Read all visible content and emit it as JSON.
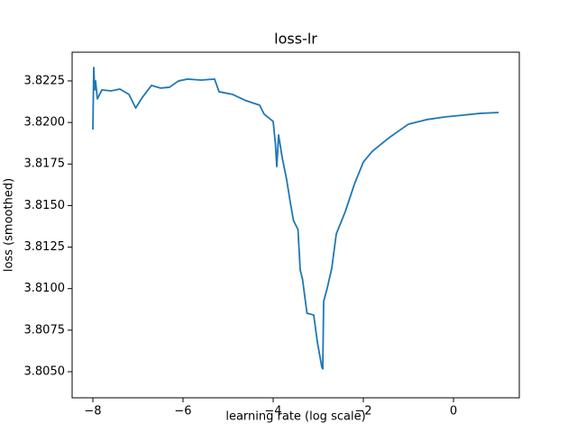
{
  "chart_data": {
    "type": "line",
    "title": "loss-lr",
    "xlabel": "learning rate (log scale)",
    "ylabel": "loss (smoothed)",
    "x": [
      -8,
      -7.98,
      -7.96,
      -7.94,
      -7.9,
      -7.8,
      -7.6,
      -7.4,
      -7.2,
      -7.05,
      -6.9,
      -6.7,
      -6.5,
      -6.3,
      -6.1,
      -5.9,
      -5.6,
      -5.3,
      -5.2,
      -4.9,
      -4.6,
      -4.3,
      -4.2,
      -4.0,
      -3.95,
      -3.92,
      -3.88,
      -3.8,
      -3.7,
      -3.62,
      -3.55,
      -3.45,
      -3.4,
      -3.35,
      -3.25,
      -3.1,
      -3.02,
      -2.92,
      -2.9,
      -2.88,
      -2.8,
      -2.7,
      -2.6,
      -2.4,
      -2.2,
      -2.0,
      -1.8,
      -1.6,
      -1.4,
      -1.2,
      -1.0,
      -0.6,
      -0.2,
      0.2,
      0.6,
      1.0
    ],
    "series": [
      {
        "name": "loss",
        "color": "#1f77b4",
        "values": [
          3.81957,
          3.82331,
          3.82196,
          3.8225,
          3.82142,
          3.82196,
          3.8219,
          3.82201,
          3.82169,
          3.82087,
          3.82152,
          3.82223,
          3.82207,
          3.82212,
          3.8225,
          3.82261,
          3.82255,
          3.82261,
          3.82185,
          3.82169,
          3.82131,
          3.82104,
          3.8205,
          3.82006,
          3.81871,
          3.81735,
          3.81925,
          3.81789,
          3.81654,
          3.81519,
          3.8141,
          3.81356,
          3.81112,
          3.81058,
          3.80852,
          3.80841,
          3.80679,
          3.80527,
          3.80517,
          3.80923,
          3.81004,
          3.81123,
          3.81329,
          3.81464,
          3.81627,
          3.81762,
          3.81827,
          3.81871,
          3.81914,
          3.81952,
          3.8199,
          3.82017,
          3.82033,
          3.82044,
          3.82055,
          3.8206
        ]
      }
    ],
    "xlim": [
      -8.46,
      1.46
    ],
    "xticks": [
      {
        "value": -8,
        "label": "−8"
      },
      {
        "value": -6,
        "label": "−6"
      },
      {
        "value": -4,
        "label": "−4"
      },
      {
        "value": -2,
        "label": "−2"
      },
      0
    ],
    "ylim": [
      3.80343,
      3.82423
    ],
    "yticks": [
      {
        "value": 3.805,
        "label": "3.8050"
      },
      {
        "value": 3.8075,
        "label": "3.8075"
      },
      {
        "value": 3.81,
        "label": "3.8100"
      },
      {
        "value": 3.8125,
        "label": "3.8125"
      },
      {
        "value": 3.815,
        "label": "3.8150"
      },
      {
        "value": 3.8175,
        "label": "3.8175"
      },
      {
        "value": 3.82,
        "label": "3.8200"
      },
      {
        "value": 3.8225,
        "label": "3.8225"
      }
    ],
    "grid": false
  }
}
